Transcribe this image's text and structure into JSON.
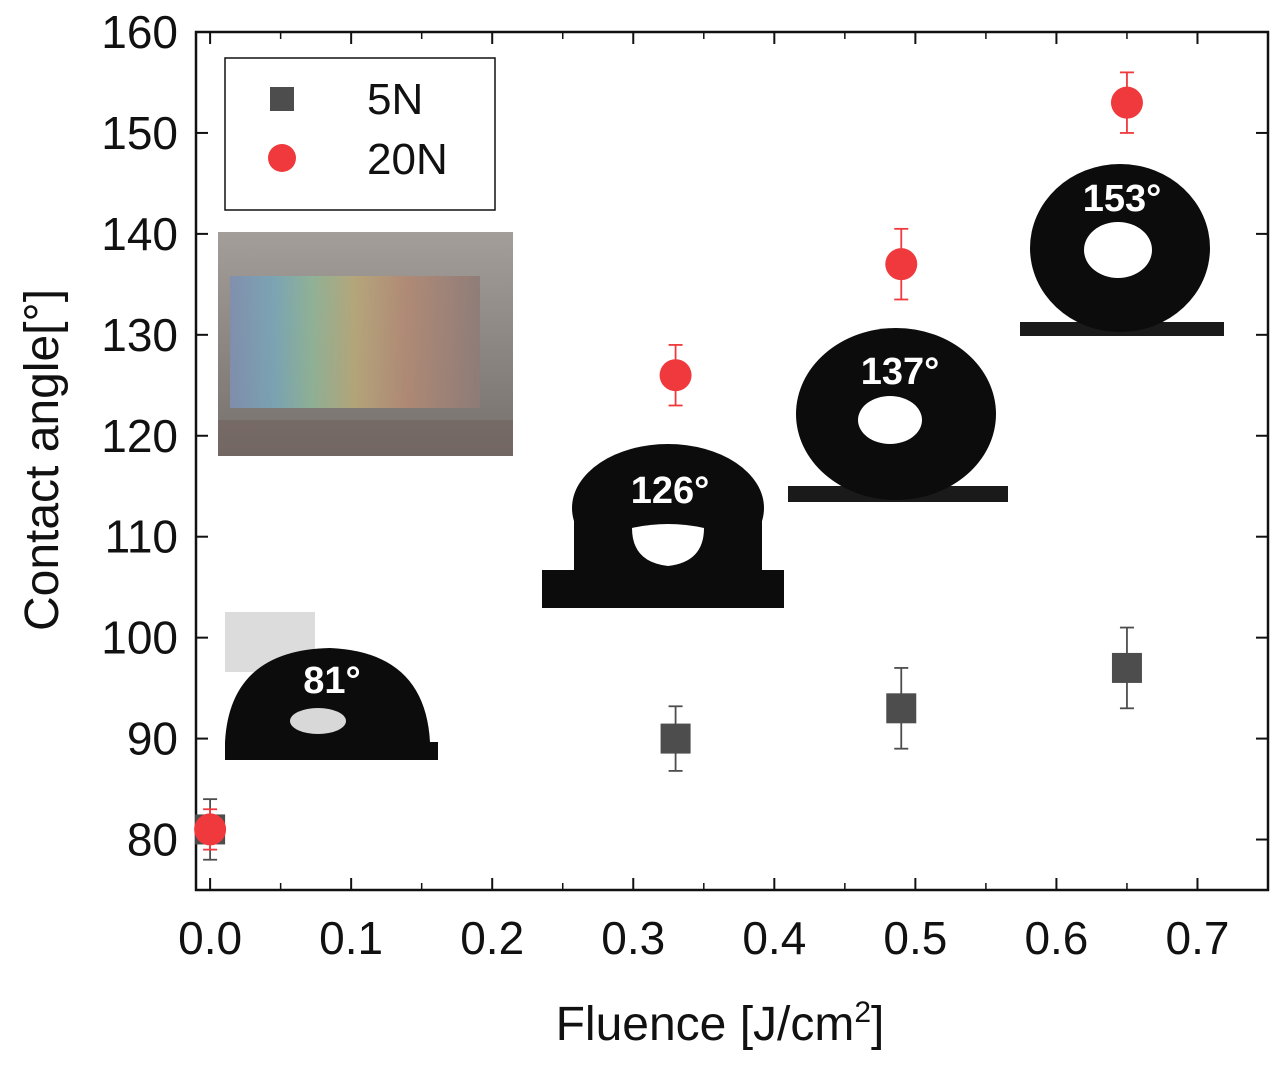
{
  "chart_data": {
    "type": "scatter",
    "xlabel": "Fluence [J/cm",
    "xlabel_sup": "2",
    "xlabel_end": "]",
    "ylabel": "Contact angle[°]",
    "xlim": [
      -0.01,
      0.75
    ],
    "ylim": [
      75,
      160
    ],
    "xticks": [
      "0.0",
      "0.1",
      "0.2",
      "0.3",
      "0.4",
      "0.5",
      "0.6",
      "0.7"
    ],
    "yticks": [
      "80",
      "90",
      "100",
      "110",
      "120",
      "130",
      "140",
      "150",
      "160"
    ],
    "grid": false,
    "legend_position": "top-left",
    "series": [
      {
        "name": "5N",
        "marker": "square",
        "color": "#4d4d4d",
        "x": [
          0.0,
          0.33,
          0.49,
          0.65
        ],
        "y": [
          81,
          90,
          93,
          97
        ],
        "err": [
          3,
          3.2,
          4,
          4
        ]
      },
      {
        "name": "20N",
        "marker": "circle",
        "color": "#f0393c",
        "x": [
          0.0,
          0.33,
          0.49,
          0.65
        ],
        "y": [
          81,
          126,
          137,
          153
        ],
        "err": [
          2,
          3,
          3.5,
          3
        ]
      }
    ],
    "annotations": [
      "81°",
      "126°",
      "137°",
      "153°"
    ]
  }
}
